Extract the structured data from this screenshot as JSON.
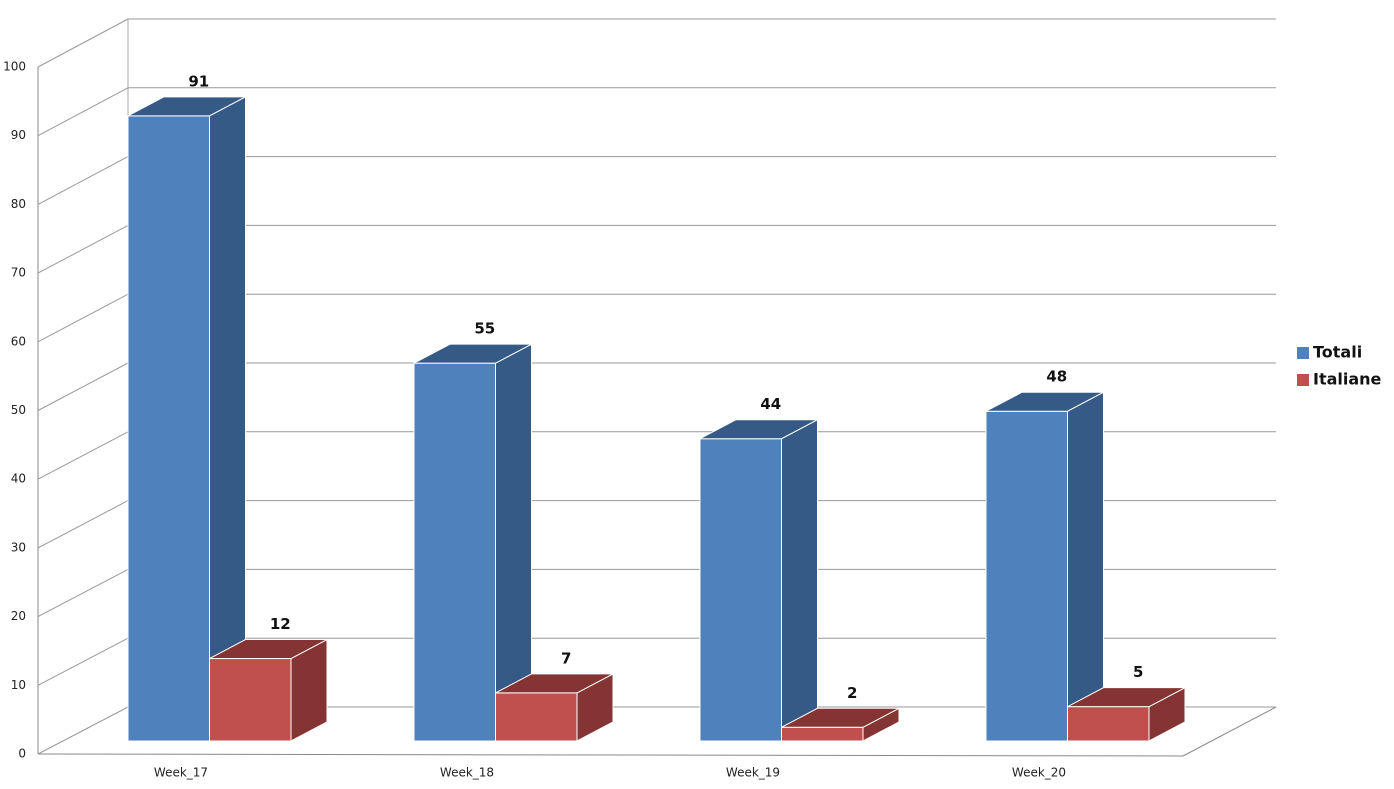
{
  "chart_data": {
    "type": "bar3d",
    "categories": [
      "Week_17",
      "Week_18",
      "Week_19",
      "Week_20"
    ],
    "series": [
      {
        "name": "Totali",
        "color": "#4f81bd",
        "side_color": "#345a85",
        "values": [
          91,
          55,
          44,
          48
        ]
      },
      {
        "name": "Italiane",
        "color": "#c0504d",
        "side_color": "#843533",
        "values": [
          12,
          7,
          2,
          5
        ]
      }
    ],
    "ylim": [
      0,
      100
    ],
    "yticks": [
      0,
      10,
      20,
      30,
      40,
      50,
      60,
      70,
      80,
      90,
      100
    ],
    "grid": true,
    "legend": "right"
  }
}
